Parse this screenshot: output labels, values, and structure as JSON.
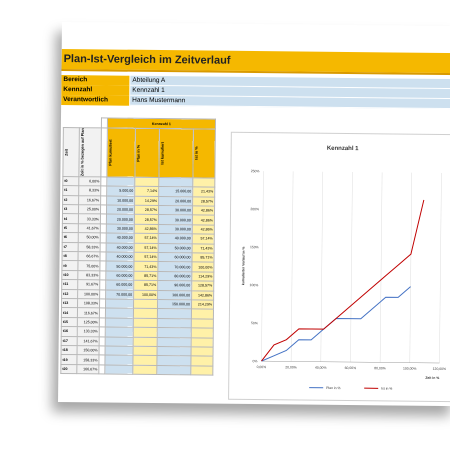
{
  "title": "Plan-Ist-Vergleich im Zeitverlauf",
  "meta": [
    {
      "key": "Bereich",
      "value": "Abteilung A"
    },
    {
      "key": "Kennzahl",
      "value": "Kennzahl 1"
    },
    {
      "key": "Verantwortlich",
      "value": "Hans Mustermann"
    }
  ],
  "table": {
    "group_header": "Kennzahl 1",
    "headers": [
      "Zeit",
      "Zeit in % bezogen auf Plan",
      "Plan kumuliert",
      "Plan in %",
      "Ist kumuliert",
      "Ist in %"
    ],
    "rows": [
      [
        "t0",
        "0,00%",
        "",
        "",
        "",
        ""
      ],
      [
        "t1",
        "8,33%",
        "5.000,00",
        "7,14%",
        "15.000,00",
        "21,43%"
      ],
      [
        "t2",
        "16,67%",
        "10.000,00",
        "14,29%",
        "20.000,00",
        "28,57%"
      ],
      [
        "t3",
        "25,00%",
        "20.000,00",
        "28,57%",
        "30.000,00",
        "42,86%"
      ],
      [
        "t4",
        "33,33%",
        "20.000,00",
        "28,57%",
        "30.000,00",
        "42,86%"
      ],
      [
        "t5",
        "41,67%",
        "30.000,00",
        "42,86%",
        "30.000,00",
        "42,86%"
      ],
      [
        "t6",
        "50,00%",
        "40.000,00",
        "57,14%",
        "40.000,00",
        "57,14%"
      ],
      [
        "t7",
        "58,33%",
        "40.000,00",
        "57,14%",
        "50.000,00",
        "71,43%"
      ],
      [
        "t8",
        "66,67%",
        "40.000,00",
        "57,14%",
        "60.000,00",
        "85,71%"
      ],
      [
        "t9",
        "75,00%",
        "50.000,00",
        "71,43%",
        "70.000,00",
        "100,00%"
      ],
      [
        "t10",
        "83,33%",
        "60.000,00",
        "85,71%",
        "80.000,00",
        "114,29%"
      ],
      [
        "t11",
        "91,67%",
        "60.000,00",
        "85,71%",
        "90.000,00",
        "128,57%"
      ],
      [
        "t12",
        "100,00%",
        "70.000,00",
        "100,00%",
        "100.000,00",
        "142,86%"
      ],
      [
        "t13",
        "108,33%",
        "",
        "",
        "150.000,00",
        "214,29%"
      ],
      [
        "t14",
        "116,67%",
        "",
        "",
        "",
        ""
      ],
      [
        "t15",
        "125,00%",
        "",
        "",
        "",
        ""
      ],
      [
        "t16",
        "133,33%",
        "",
        "",
        "",
        ""
      ],
      [
        "t17",
        "141,67%",
        "",
        "",
        "",
        ""
      ],
      [
        "t18",
        "150,00%",
        "",
        "",
        "",
        ""
      ],
      [
        "t19",
        "158,33%",
        "",
        "",
        "",
        ""
      ],
      [
        "t20",
        "166,67%",
        "",
        "",
        "",
        ""
      ]
    ]
  },
  "chart_data": {
    "type": "line",
    "title": "Kennzahl 1",
    "xlabel": "Zeit in %",
    "ylabel": "kumulierter Verlauf in %",
    "xlim": [
      0,
      120
    ],
    "ylim": [
      0,
      250
    ],
    "x_ticks": [
      "0,00%",
      "20,00%",
      "40,00%",
      "60,00%",
      "80,00%",
      "100,00%",
      "120,00%"
    ],
    "y_ticks": [
      "0%",
      "50%",
      "100%",
      "150%",
      "200%",
      "250%"
    ],
    "series": [
      {
        "name": "Plan in %",
        "color": "#4472c4",
        "x": [
          0,
          8.33,
          16.67,
          25,
          33.33,
          41.67,
          50,
          58.33,
          66.67,
          75,
          83.33,
          91.67,
          100
        ],
        "y": [
          0,
          7.14,
          14.29,
          28.57,
          28.57,
          42.86,
          57.14,
          57.14,
          57.14,
          71.43,
          85.71,
          85.71,
          100
        ]
      },
      {
        "name": "Ist in %",
        "color": "#c00000",
        "x": [
          0,
          8.33,
          16.67,
          25,
          33.33,
          41.67,
          50,
          58.33,
          66.67,
          75,
          83.33,
          91.67,
          100,
          108.33
        ],
        "y": [
          0,
          21.43,
          28.57,
          42.86,
          42.86,
          42.86,
          57.14,
          71.43,
          85.71,
          100,
          114.29,
          128.57,
          142.86,
          214.29
        ]
      }
    ],
    "legend": "bottom",
    "grid": "vertical"
  }
}
